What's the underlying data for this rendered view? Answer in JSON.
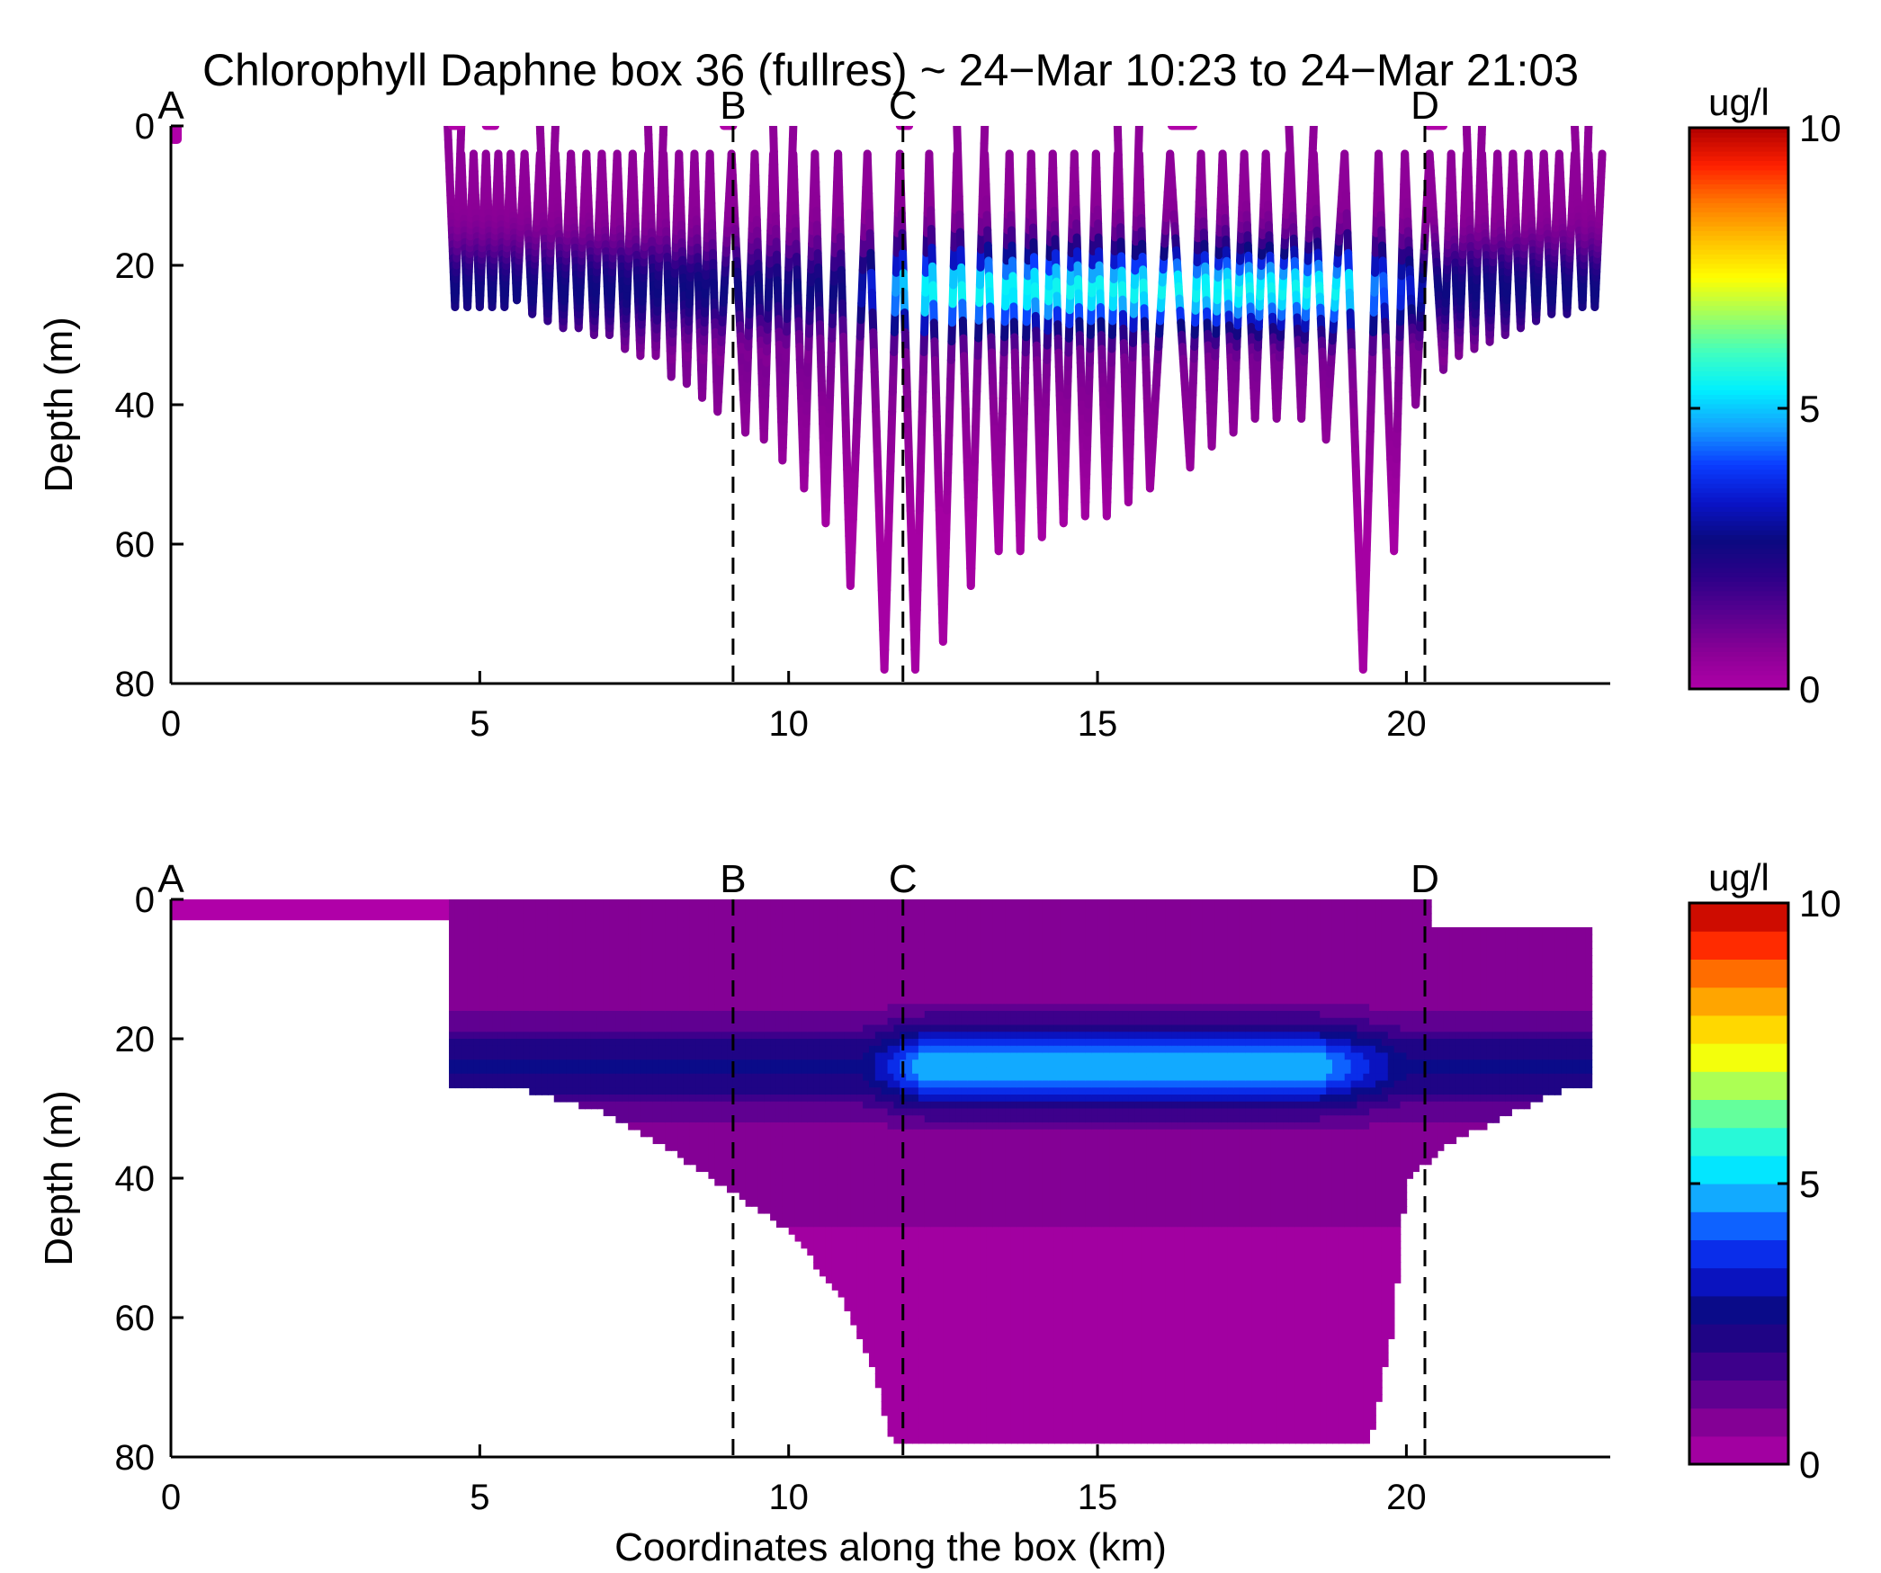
{
  "title": "Chlorophyll Daphne box 36 (fullres) ~ 24−Mar 10:23 to 24−Mar 21:03",
  "chart_data": [
    {
      "panel": "top",
      "type": "scatter",
      "description_of_marks": "glider sawtooth profiles colored by chlorophyll",
      "xlabel": "",
      "ylabel": "Depth (m)",
      "xlim": [
        0,
        23.3
      ],
      "ylim": [
        80,
        0
      ],
      "x_ticks": [
        0,
        5,
        10,
        15,
        20
      ],
      "y_ticks": [
        0,
        20,
        40,
        60,
        80
      ],
      "markers": [
        {
          "label": "A",
          "x": 0
        },
        {
          "label": "B",
          "x": 9.1
        },
        {
          "label": "C",
          "x": 11.85
        },
        {
          "label": "D",
          "x": 20.3
        }
      ],
      "dives": [
        {
          "x": 4.6,
          "depth": 26
        },
        {
          "x": 4.8,
          "depth": 26
        },
        {
          "x": 5.0,
          "depth": 26
        },
        {
          "x": 5.2,
          "depth": 26
        },
        {
          "x": 5.4,
          "depth": 26
        },
        {
          "x": 5.6,
          "depth": 25
        },
        {
          "x": 5.85,
          "depth": 27
        },
        {
          "x": 6.1,
          "depth": 28
        },
        {
          "x": 6.35,
          "depth": 29
        },
        {
          "x": 6.6,
          "depth": 29
        },
        {
          "x": 6.85,
          "depth": 30
        },
        {
          "x": 7.1,
          "depth": 30
        },
        {
          "x": 7.35,
          "depth": 32
        },
        {
          "x": 7.6,
          "depth": 33
        },
        {
          "x": 7.85,
          "depth": 33
        },
        {
          "x": 8.1,
          "depth": 36
        },
        {
          "x": 8.35,
          "depth": 37
        },
        {
          "x": 8.6,
          "depth": 39
        },
        {
          "x": 8.85,
          "depth": 41
        },
        {
          "x": 9.3,
          "depth": 44
        },
        {
          "x": 9.6,
          "depth": 45
        },
        {
          "x": 9.9,
          "depth": 48
        },
        {
          "x": 10.25,
          "depth": 52
        },
        {
          "x": 10.6,
          "depth": 57
        },
        {
          "x": 11.0,
          "depth": 66
        },
        {
          "x": 11.55,
          "depth": 78
        },
        {
          "x": 12.05,
          "depth": 78
        },
        {
          "x": 12.5,
          "depth": 74
        },
        {
          "x": 12.95,
          "depth": 66
        },
        {
          "x": 13.4,
          "depth": 61
        },
        {
          "x": 13.75,
          "depth": 61
        },
        {
          "x": 14.1,
          "depth": 59
        },
        {
          "x": 14.45,
          "depth": 57
        },
        {
          "x": 14.8,
          "depth": 56
        },
        {
          "x": 15.15,
          "depth": 56
        },
        {
          "x": 15.5,
          "depth": 54
        },
        {
          "x": 15.85,
          "depth": 52
        },
        {
          "x": 16.5,
          "depth": 49
        },
        {
          "x": 16.85,
          "depth": 46
        },
        {
          "x": 17.2,
          "depth": 44
        },
        {
          "x": 17.55,
          "depth": 42
        },
        {
          "x": 17.9,
          "depth": 42
        },
        {
          "x": 18.3,
          "depth": 42
        },
        {
          "x": 18.7,
          "depth": 45
        },
        {
          "x": 19.3,
          "depth": 78
        },
        {
          "x": 19.8,
          "depth": 61
        },
        {
          "x": 20.15,
          "depth": 40
        },
        {
          "x": 20.6,
          "depth": 35
        },
        {
          "x": 20.85,
          "depth": 33
        },
        {
          "x": 21.1,
          "depth": 32
        },
        {
          "x": 21.35,
          "depth": 31
        },
        {
          "x": 21.6,
          "depth": 30
        },
        {
          "x": 21.85,
          "depth": 29
        },
        {
          "x": 22.1,
          "depth": 28
        },
        {
          "x": 22.35,
          "depth": 27
        },
        {
          "x": 22.6,
          "depth": 27
        },
        {
          "x": 22.85,
          "depth": 26
        },
        {
          "x": 23.05,
          "depth": 26
        }
      ],
      "chlorophyll_max_layer": {
        "depth_range": [
          20,
          27
        ],
        "peak_x_range": [
          12,
          19
        ],
        "peak_value": 5.5
      }
    },
    {
      "panel": "bottom",
      "type": "heatmap",
      "description_of_marks": "filled contours of interpolated chlorophyll",
      "xlabel": "Coordinates along the box (km)",
      "ylabel": "Depth (m)",
      "xlim": [
        0,
        23.3
      ],
      "ylim": [
        80,
        0
      ],
      "x_ticks": [
        0,
        5,
        10,
        15,
        20
      ],
      "y_ticks": [
        0,
        20,
        40,
        60,
        80
      ],
      "markers": [
        {
          "label": "A",
          "x": 0
        },
        {
          "label": "B",
          "x": 9.1
        },
        {
          "label": "C",
          "x": 11.85
        },
        {
          "label": "D",
          "x": 20.3
        }
      ],
      "bottom_profile": [
        {
          "x": 4.5,
          "depth": 26
        },
        {
          "x": 5.8,
          "depth": 27
        },
        {
          "x": 7.0,
          "depth": 30
        },
        {
          "x": 8.0,
          "depth": 35
        },
        {
          "x": 9.0,
          "depth": 41
        },
        {
          "x": 10.0,
          "depth": 47
        },
        {
          "x": 10.8,
          "depth": 56
        },
        {
          "x": 11.3,
          "depth": 65
        },
        {
          "x": 11.7,
          "depth": 78
        },
        {
          "x": 19.4,
          "depth": 78
        },
        {
          "x": 19.8,
          "depth": 60
        },
        {
          "x": 20.0,
          "depth": 40
        },
        {
          "x": 20.6,
          "depth": 35
        },
        {
          "x": 21.5,
          "depth": 31
        },
        {
          "x": 22.5,
          "depth": 27
        },
        {
          "x": 23.05,
          "depth": 26
        }
      ],
      "chlorophyll_max_layer": {
        "depth_range": [
          20,
          28
        ],
        "peak_x_range": [
          12.2,
          18.5
        ],
        "peak_value": 5
      }
    }
  ],
  "colorbars": [
    {
      "label": "ug/l",
      "min": 0,
      "max": 10,
      "ticks": [
        "0",
        "5",
        "10"
      ],
      "style": "continuous"
    },
    {
      "label": "ug/l",
      "min": 0,
      "max": 10,
      "ticks": [
        "0",
        "5",
        "10"
      ],
      "style": "discrete",
      "levels": 20
    }
  ],
  "colormap": [
    "#b000a8",
    "#8a0096",
    "#5a0090",
    "#2c0088",
    "#0a0a80",
    "#0a14c8",
    "#0a3cff",
    "#14a0ff",
    "#00f0ff",
    "#40ffc0",
    "#a0ff60",
    "#ffff00",
    "#ffc000",
    "#ff7800",
    "#ff2000",
    "#b00000"
  ]
}
